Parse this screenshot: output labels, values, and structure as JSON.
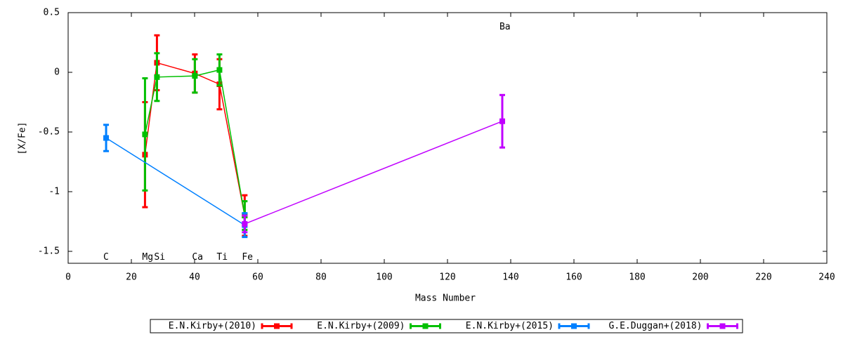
{
  "chart_data": {
    "type": "errorbar-line",
    "xlabel": "Mass Number",
    "ylabel": "[X/Fe]",
    "xlim": [
      0,
      240
    ],
    "ylim": [
      -1.6,
      0.5
    ],
    "xticks": [
      0,
      20,
      40,
      60,
      80,
      100,
      120,
      140,
      160,
      180,
      200,
      220,
      240
    ],
    "yticks": [
      0.5,
      0,
      -0.5,
      -1,
      -1.5
    ],
    "grid": false,
    "legend": "bottom",
    "series": [
      {
        "name": "E.N.Kirby+(2010)",
        "color": "#ff0000",
        "x": [
          24.31,
          28.09,
          40.08,
          47.87,
          55.85
        ],
        "values": [
          -0.69,
          0.08,
          -0.01,
          -0.1,
          -1.2
        ],
        "errors": [
          0.44,
          0.23,
          0.16,
          0.21,
          0.17
        ]
      },
      {
        "name": "E.N.Kirby+(2009)",
        "color": "#00c000",
        "x": [
          24.31,
          28.09,
          40.08,
          47.87,
          55.85
        ],
        "values": [
          -0.52,
          -0.04,
          -0.03,
          0.02,
          -1.2
        ],
        "errors": [
          0.47,
          0.2,
          0.14,
          0.13,
          0.12
        ]
      },
      {
        "name": "E.N.Kirby+(2015)",
        "color": "#0080ff",
        "x": [
          12.01,
          55.85
        ],
        "values": [
          -0.55,
          -1.28
        ],
        "errors": [
          0.11,
          0.1
        ]
      },
      {
        "name": "G.E.Duggan+(2018)",
        "color": "#c000ff",
        "x": [
          55.85,
          137.33
        ],
        "values": [
          -1.27,
          -0.41
        ],
        "errors": [
          0.07,
          0.22
        ]
      }
    ],
    "annotations": [
      {
        "text": "C",
        "x": 12.01,
        "y": -1.55
      },
      {
        "text": "Mg",
        "x": 24.31,
        "y": -1.55
      },
      {
        "text": "Si",
        "x": 28.09,
        "y": -1.55
      },
      {
        "text": "Ca",
        "x": 40.08,
        "y": -1.55
      },
      {
        "text": "Ti",
        "x": 47.87,
        "y": -1.55
      },
      {
        "text": "Fe",
        "x": 55.85,
        "y": -1.55
      },
      {
        "text": "Ba",
        "x": 137.33,
        "y": 0.38
      }
    ]
  }
}
